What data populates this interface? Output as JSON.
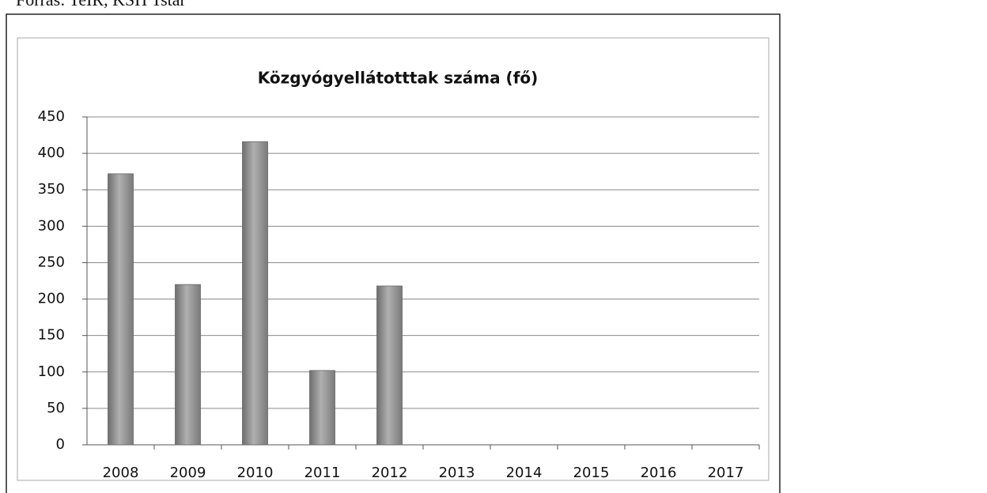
{
  "chart_data": {
    "type": "bar",
    "source": "Forrás: TeIR, KSH Tstar",
    "title": "Közgyógyellátotttak száma (fő)",
    "categories": [
      "2008",
      "2009",
      "2010",
      "2011",
      "2012",
      "2013",
      "2014",
      "2015",
      "2016",
      "2017"
    ],
    "values": [
      372,
      220,
      416,
      102,
      218,
      null,
      null,
      null,
      null,
      null
    ],
    "color": "#9a9a9a",
    "ylim": [
      0,
      450
    ],
    "yticks": [
      0,
      50,
      100,
      150,
      200,
      250,
      300,
      350,
      400,
      450
    ],
    "grid": true
  }
}
